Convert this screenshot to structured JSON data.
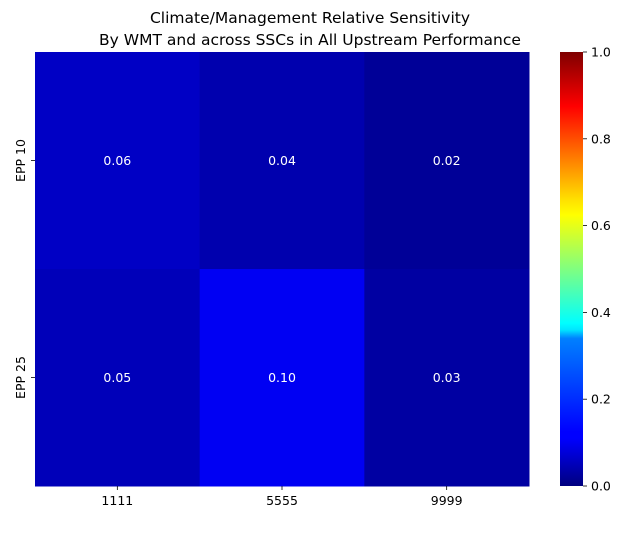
{
  "chart_data": {
    "type": "heatmap",
    "title": "Climate/Management Relative Sensitivity",
    "subtitle": "By WMT and across SSCs in All Upstream Performance",
    "xlabel": "",
    "ylabel": "",
    "x_categories": [
      "1111",
      "5555",
      "9999"
    ],
    "y_categories": [
      "EPP 10",
      "EPP 25"
    ],
    "values": [
      [
        0.06,
        0.04,
        0.02
      ],
      [
        0.05,
        0.1,
        0.03
      ]
    ],
    "value_labels": [
      [
        "0.06",
        "0.04",
        "0.02"
      ],
      [
        "0.05",
        "0.10",
        "0.03"
      ]
    ],
    "colormap": "jet",
    "colorbar": {
      "range": [
        0,
        1
      ],
      "ticks": [
        0.0,
        0.2,
        0.4,
        0.6,
        0.8,
        1.0
      ],
      "tick_labels": [
        "0.0",
        "0.2",
        "0.4",
        "0.6",
        "0.8",
        "1.0"
      ]
    },
    "cell_text_color": "#ffffff"
  }
}
